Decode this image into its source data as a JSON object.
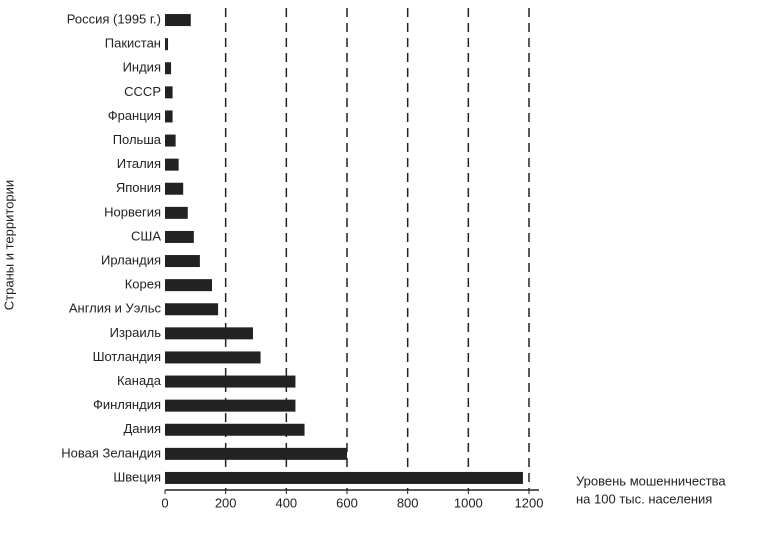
{
  "chart_data": {
    "type": "barh",
    "ylabel": "Страны и территории",
    "xlabel": [
      "Уровень мошенничества",
      "на 100 тыс. населения"
    ],
    "categories": [
      "Россия (1995 г.)",
      "Пакистан",
      "Индия",
      "СССР",
      "Франция",
      "Польша",
      "Италия",
      "Япония",
      "Норвегия",
      "США",
      "Ирландия",
      "Корея",
      "Англия и Уэльс",
      "Израиль",
      "Шотландия",
      "Канада",
      "Финляндия",
      "Дания",
      "Новая Зеландия",
      "Швеция"
    ],
    "values": [
      85,
      10,
      20,
      25,
      25,
      35,
      45,
      60,
      75,
      95,
      115,
      155,
      175,
      290,
      315,
      430,
      430,
      460,
      600,
      1180
    ],
    "color": "#222222",
    "xlim": [
      0,
      1200
    ],
    "xticks": [
      0,
      200,
      400,
      600,
      800,
      1000,
      1200
    ],
    "grid": true
  }
}
